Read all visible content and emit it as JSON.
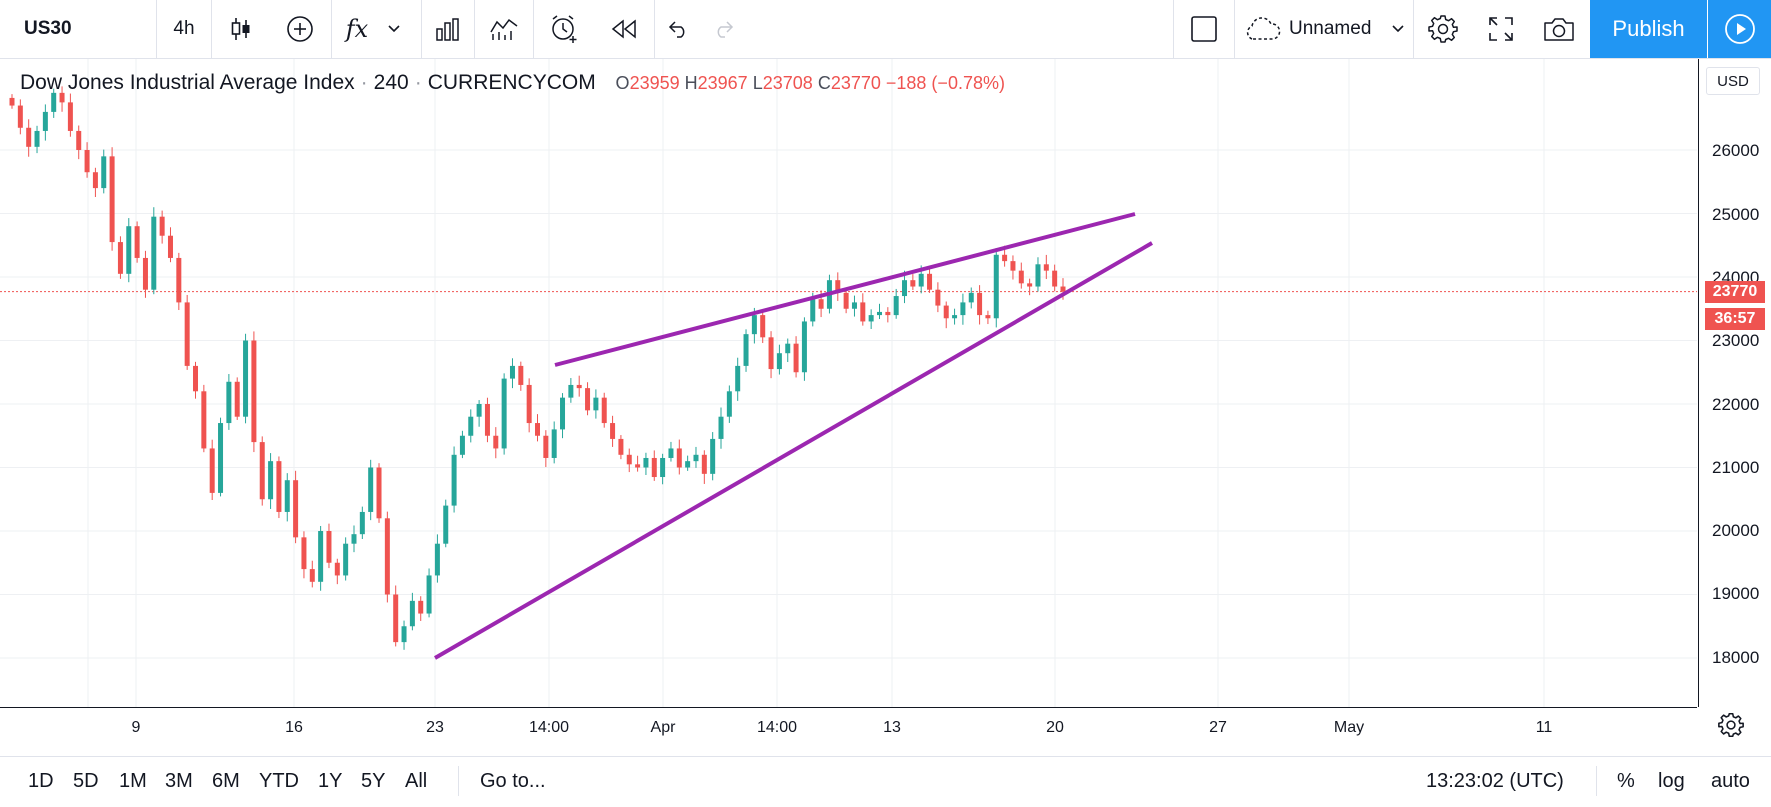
{
  "toolbar": {
    "symbol": "US30",
    "interval": "4h",
    "fx_label": "fx",
    "layout_name": "Unnamed",
    "publish_label": "Publish"
  },
  "legend": {
    "title": "Dow Jones Industrial Average Index",
    "interval": "240",
    "exchange": "CURRENCYCOM",
    "o_label": "O",
    "o_value": "23959",
    "h_label": "H",
    "h_value": "23967",
    "l_label": "L",
    "l_value": "23708",
    "c_label": "C",
    "c_value": "23770",
    "change": "−188 (−0.78%)"
  },
  "price_axis": {
    "currency": "USD",
    "ticks": [
      "26000",
      "25000",
      "24000",
      "23000",
      "22000",
      "21000",
      "20000",
      "19000",
      "18000"
    ],
    "last_price": "23770",
    "countdown": "36:57"
  },
  "time_axis": {
    "ticks": [
      "9",
      "16",
      "23",
      "14:00",
      "Apr",
      "14:00",
      "13",
      "20",
      "27",
      "May",
      "11"
    ]
  },
  "bottom_bar": {
    "ranges": [
      "1D",
      "5D",
      "1M",
      "3M",
      "6M",
      "YTD",
      "1Y",
      "5Y",
      "All"
    ],
    "goto_label": "Go to...",
    "clock": "13:23:02 (UTC)",
    "percent_label": "%",
    "log_label": "log",
    "auto_label": "auto"
  },
  "colors": {
    "up": "#26a69a",
    "down": "#ef5350",
    "trendline": "#9c27b0",
    "accent": "#2196f3"
  },
  "chart_data": {
    "type": "candlestick",
    "symbol": "US30",
    "interval": "240",
    "ylim": [
      17300,
      27000
    ],
    "current_price": 23770,
    "closes": [
      26700,
      26350,
      26050,
      26300,
      26600,
      26900,
      26750,
      26300,
      26000,
      25650,
      25400,
      25900,
      24550,
      24050,
      24800,
      24300,
      23800,
      24950,
      24650,
      24300,
      23600,
      22600,
      22200,
      21300,
      20600,
      21700,
      22350,
      21800,
      23000,
      21400,
      20500,
      21100,
      20300,
      20800,
      19900,
      19400,
      19200,
      20000,
      19500,
      19300,
      19800,
      19950,
      20300,
      21000,
      20200,
      19000,
      18250,
      18500,
      18900,
      18700,
      19300,
      19800,
      20400,
      21200,
      21500,
      21800,
      22000,
      21500,
      21300,
      22400,
      22600,
      22300,
      21700,
      21500,
      21150,
      21600,
      22100,
      22300,
      22250,
      21900,
      22100,
      21700,
      21450,
      21200,
      21050,
      21000,
      21150,
      20850,
      21150,
      21300,
      21000,
      21100,
      21200,
      20900,
      21450,
      21800,
      22200,
      22600,
      23100,
      23400,
      23050,
      22550,
      22800,
      22950,
      22500,
      23300,
      23650,
      23500,
      23950,
      23750,
      23500,
      23600,
      23300,
      23400,
      23450,
      23400,
      23700,
      23950,
      23850,
      24050,
      23800,
      23550,
      23350,
      23400,
      23600,
      23750,
      23400,
      23350,
      24350,
      24250,
      24100,
      23900,
      23850,
      24200,
      24100,
      23850,
      23770
    ]
  }
}
